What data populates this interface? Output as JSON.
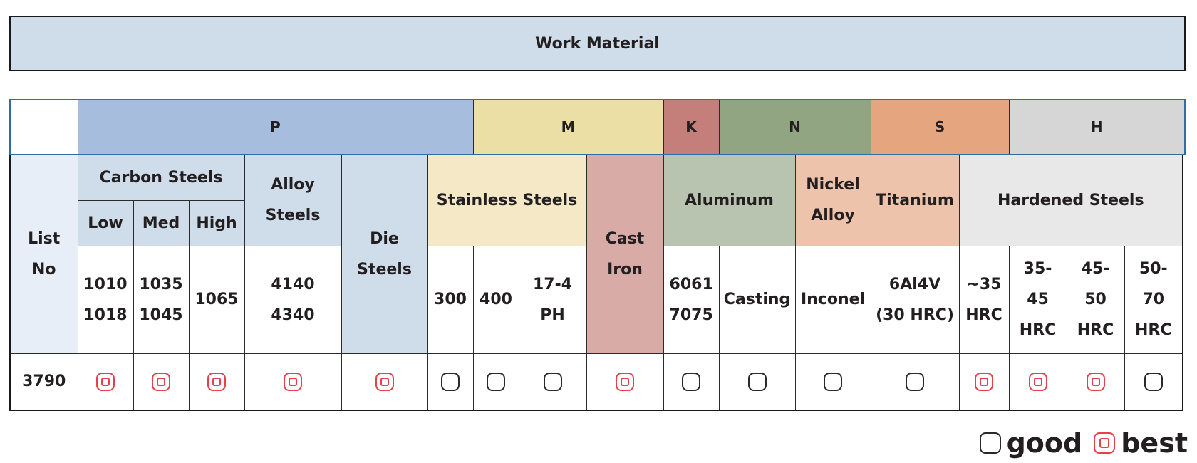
{
  "title": "Work Material",
  "groups": {
    "p": {
      "label": "P",
      "color": "#a7bddd"
    },
    "m": {
      "label": "M",
      "color": "#ebdfa6"
    },
    "k": {
      "label": "K",
      "color": "#c47f7b"
    },
    "n": {
      "label": "N",
      "color": "#92a583"
    },
    "s": {
      "label": "S",
      "color": "#e5a57f"
    },
    "h": {
      "label": "H",
      "color": "#d6d6d6"
    }
  },
  "row_header": {
    "list_no_line1": "List",
    "list_no_line2": "No"
  },
  "categories": {
    "carbon_steels": "Carbon Steels",
    "alloy_steels_line1": "Alloy",
    "alloy_steels_line2": "Steels",
    "die_steels_line1": "Die",
    "die_steels_line2": "Steels",
    "stainless_steels": "Stainless Steels",
    "cast_iron_line1": "Cast",
    "cast_iron_line2": "Iron",
    "aluminum": "Aluminum",
    "nickel_alloy_line1": "Nickel",
    "nickel_alloy_line2": "Alloy",
    "titanium": "Titanium",
    "hardened_steels": "Hardened Steels"
  },
  "carbon_subs": {
    "low": "Low",
    "med": "Med",
    "high": "High"
  },
  "grades": {
    "low": [
      "1010",
      "1018"
    ],
    "med": [
      "1035",
      "1045"
    ],
    "high": [
      "1065"
    ],
    "alloy": [
      "4140",
      "4340"
    ],
    "ss300": [
      "300"
    ],
    "ss400": [
      "400"
    ],
    "ss174": [
      "17-4",
      "PH"
    ],
    "al_wrought": [
      "6061",
      "7075"
    ],
    "al_casting": [
      "Casting"
    ],
    "nickel": [
      "Inconel"
    ],
    "titanium": [
      "6Al4V",
      "(30 HRC)"
    ],
    "h35": [
      "~35",
      "HRC"
    ],
    "h3545": [
      "35-",
      "45",
      "HRC"
    ],
    "h4550": [
      "45-",
      "50",
      "HRC"
    ],
    "h5070": [
      "50-",
      "70",
      "HRC"
    ]
  },
  "product_row": {
    "list_no": "3790",
    "ratings": [
      "best",
      "best",
      "best",
      "best",
      "best",
      "good",
      "good",
      "good",
      "best",
      "good",
      "good",
      "good",
      "good",
      "best",
      "best",
      "best",
      "good"
    ]
  },
  "legend": {
    "good": "good",
    "best": "best"
  }
}
